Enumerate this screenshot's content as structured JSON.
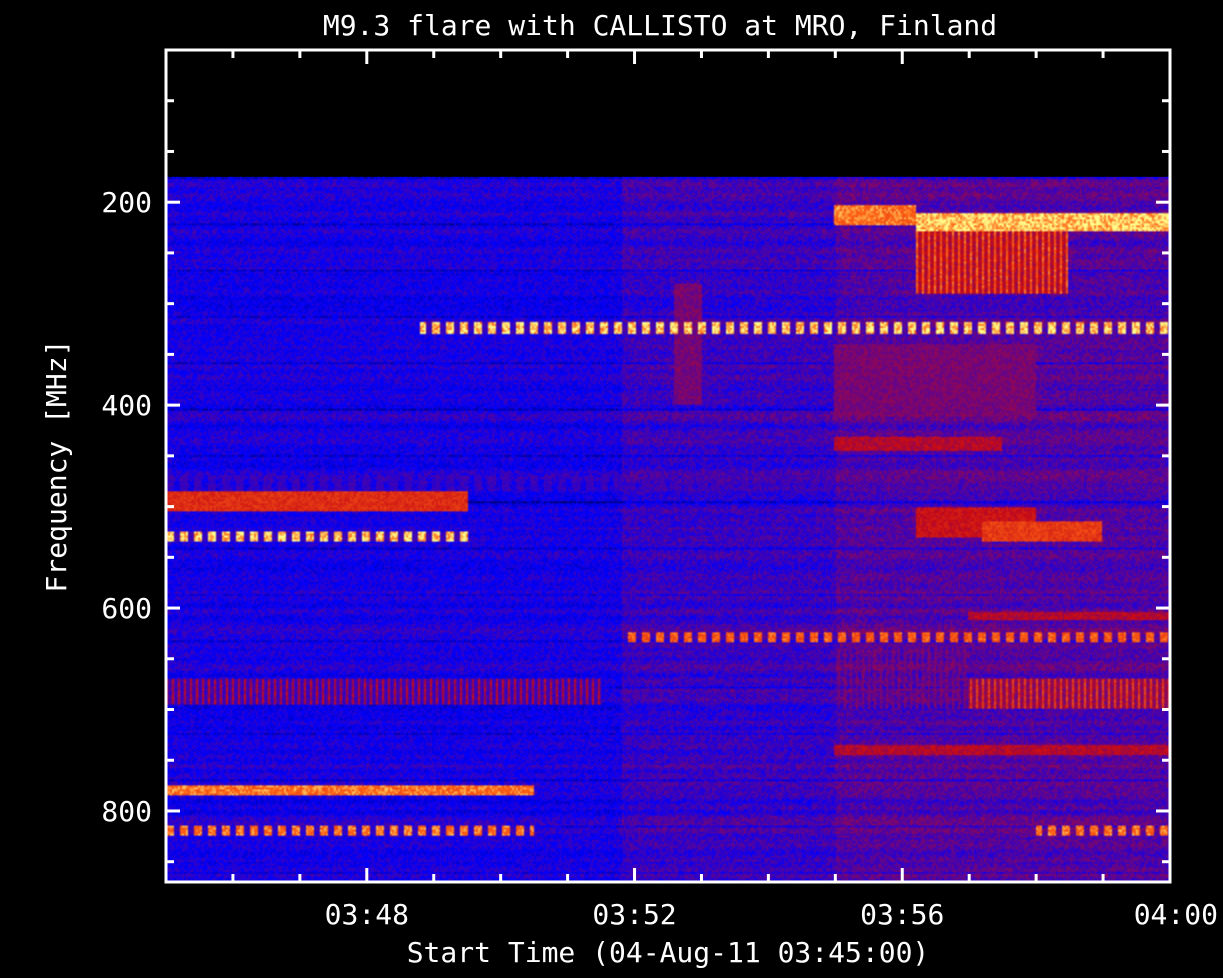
{
  "chart_data": {
    "type": "heatmap",
    "title": "M9.3 flare with CALLISTO at MRO, Finland",
    "xlabel": "Start Time (04-Aug-11 03:45:00)",
    "ylabel": "Frequency [MHz]",
    "x_ticks": [
      "03:48",
      "03:52",
      "03:56",
      "04:00"
    ],
    "y_ticks": [
      "200",
      "400",
      "600",
      "800"
    ],
    "x_range_minutes": [
      0,
      15
    ],
    "xlim": [
      "03:45:00",
      "04:00:00"
    ],
    "ylim": [
      870,
      50
    ],
    "data_freq_range": [
      175,
      870
    ],
    "colormap": [
      "#000000",
      "#1010ff",
      "#cc1010",
      "#ffff80"
    ],
    "features": [
      {
        "t": [
          3.8,
          15.0
        ],
        "f": [
          318,
          330
        ],
        "level": 1.0,
        "pattern": "dashed"
      },
      {
        "t": [
          6.8,
          15.0
        ],
        "f": [
          624,
          634
        ],
        "level": 0.85,
        "pattern": "dashed"
      },
      {
        "t": [
          0.0,
          15.0
        ],
        "f": [
          468,
          485
        ],
        "level": 0.35,
        "pattern": "dashed"
      },
      {
        "t": [
          0.0,
          4.5
        ],
        "f": [
          525,
          535
        ],
        "level": 1.0,
        "pattern": "dashed"
      },
      {
        "t": [
          0.0,
          5.5
        ],
        "f": [
          775,
          785
        ],
        "level": 0.9,
        "pattern": "solid"
      },
      {
        "t": [
          0.0,
          5.5
        ],
        "f": [
          815,
          825
        ],
        "level": 0.9,
        "pattern": "dashed"
      },
      {
        "t": [
          0.0,
          4.5
        ],
        "f": [
          485,
          505
        ],
        "level": 0.7,
        "pattern": "solid"
      },
      {
        "t": [
          0.0,
          6.5
        ],
        "f": [
          670,
          695
        ],
        "level": 0.55,
        "pattern": "striped"
      },
      {
        "t": [
          11.2,
          15.0
        ],
        "f": [
          210,
          228
        ],
        "level": 1.0,
        "pattern": "solid"
      },
      {
        "t": [
          11.2,
          13.5
        ],
        "f": [
          228,
          290
        ],
        "level": 0.85,
        "pattern": "striped"
      },
      {
        "t": [
          10.0,
          11.2
        ],
        "f": [
          202,
          222
        ],
        "level": 0.9,
        "pattern": "solid"
      },
      {
        "t": [
          12.2,
          14.0
        ],
        "f": [
          515,
          535
        ],
        "level": 0.75,
        "pattern": "solid"
      },
      {
        "t": [
          11.2,
          13.0
        ],
        "f": [
          500,
          530
        ],
        "level": 0.6,
        "pattern": "solid"
      },
      {
        "t": [
          12.0,
          15.0
        ],
        "f": [
          670,
          700
        ],
        "level": 0.75,
        "pattern": "striped"
      },
      {
        "t": [
          10.0,
          12.0
        ],
        "f": [
          640,
          700
        ],
        "level": 0.45,
        "pattern": "striped"
      },
      {
        "t": [
          10.0,
          13.0
        ],
        "f": [
          340,
          410
        ],
        "level": 0.45,
        "pattern": "solid"
      },
      {
        "t": [
          10.0,
          12.5
        ],
        "f": [
          430,
          445
        ],
        "level": 0.55,
        "pattern": "solid"
      },
      {
        "t": [
          10.0,
          15.0
        ],
        "f": [
          735,
          745
        ],
        "level": 0.55,
        "pattern": "solid"
      },
      {
        "t": [
          13.0,
          15.0
        ],
        "f": [
          815,
          825
        ],
        "level": 0.9,
        "pattern": "dashed"
      },
      {
        "t": [
          12.0,
          15.0
        ],
        "f": [
          605,
          612
        ],
        "level": 0.55,
        "pattern": "solid"
      },
      {
        "t": [
          7.6,
          8.0
        ],
        "f": [
          280,
          400
        ],
        "level": 0.45,
        "pattern": "solid"
      }
    ]
  }
}
